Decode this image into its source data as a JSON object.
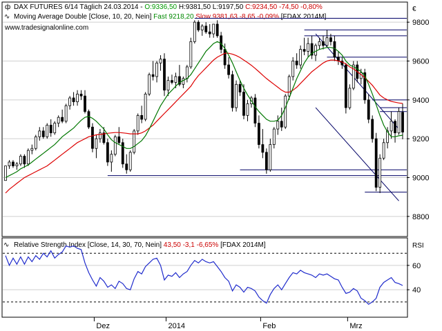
{
  "header": {
    "line1_icon": "candlestick-icon",
    "line1_parts": [
      {
        "text": "DAX FUTURES 6/14 Täglich  24.03.2014 - ",
        "color": "#000000"
      },
      {
        "text": "O:9336,50",
        "color": "#009900"
      },
      {
        "text": " H:9381,50 L:9197,50 ",
        "color": "#000000"
      },
      {
        "text": "C:9234,50 -74,50 -0,80%",
        "color": "#cc0000"
      }
    ],
    "line2_icon": "moving-average-icon",
    "line2_parts": [
      {
        "text": "Moving Average Double [Close, 10, 20, Nein] ",
        "color": "#000000"
      },
      {
        "text": "Fast 9218,20",
        "color": "#008800"
      },
      {
        "text": " Slow 9381,63 -8,65 -0,09%",
        "color": "#cc0000"
      },
      {
        "text": " [FDAX 2014M]",
        "color": "#000000"
      }
    ],
    "website": "www.tradesignalonline.com",
    "currency": "€"
  },
  "rsi_header": {
    "icon": "rsi-line-icon",
    "parts": [
      {
        "text": "Relative Strength Index [Close, 14, 30, 70, Nein] ",
        "color": "#000000"
      },
      {
        "text": "43,50 -3,1 -6,65%",
        "color": "#cc0000"
      },
      {
        "text": " [FDAX 2014M]",
        "color": "#000000"
      }
    ],
    "axis_title": "RSI"
  },
  "colors": {
    "fast_ma": "#007700",
    "slow_ma": "#dd0000",
    "candle": "#000000",
    "up_body": "#ffffff",
    "rsi_line": "#1f2bcc",
    "levels": "#000066"
  },
  "chart_data": [
    {
      "type": "candlestick",
      "ylim": [
        8700,
        9900
      ],
      "yticks": [
        8800,
        9000,
        9200,
        9400,
        9600,
        9800
      ],
      "xlabels": [
        {
          "label": "Dez",
          "index": 24
        },
        {
          "label": "2014",
          "index": 43
        },
        {
          "label": "Feb",
          "index": 68
        },
        {
          "label": "Mrz",
          "index": 91
        }
      ],
      "candles": [
        [
          8985,
          9060,
          8985,
          9060
        ],
        [
          9060,
          9090,
          9045,
          9080
        ],
        [
          9080,
          9090,
          9050,
          9060
        ],
        [
          9060,
          9080,
          9040,
          9070
        ],
        [
          9070,
          9120,
          9060,
          9110
        ],
        [
          9110,
          9120,
          9050,
          9070
        ],
        [
          9070,
          9150,
          9060,
          9140
        ],
        [
          9140,
          9170,
          9120,
          9150
        ],
        [
          9150,
          9220,
          9140,
          9210
        ],
        [
          9210,
          9260,
          9190,
          9240
        ],
        [
          9240,
          9260,
          9200,
          9210
        ],
        [
          9210,
          9280,
          9200,
          9270
        ],
        [
          9270,
          9300,
          9210,
          9230
        ],
        [
          9230,
          9290,
          9220,
          9280
        ],
        [
          9280,
          9320,
          9260,
          9310
        ],
        [
          9310,
          9350,
          9280,
          9290
        ],
        [
          9290,
          9380,
          9280,
          9370
        ],
        [
          9370,
          9420,
          9350,
          9410
        ],
        [
          9410,
          9440,
          9370,
          9390
        ],
        [
          9390,
          9450,
          9370,
          9430
        ],
        [
          9430,
          9450,
          9400,
          9420
        ],
        [
          9420,
          9450,
          9330,
          9340
        ],
        [
          9340,
          9350,
          9250,
          9260
        ],
        [
          9260,
          9280,
          9130,
          9150
        ],
        [
          9150,
          9220,
          9100,
          9200
        ],
        [
          9200,
          9250,
          9180,
          9230
        ],
        [
          9230,
          9260,
          9170,
          9180
        ],
        [
          9180,
          9200,
          9060,
          9080
        ],
        [
          9080,
          9140,
          9030,
          9120
        ],
        [
          9120,
          9220,
          9110,
          9210
        ],
        [
          9210,
          9260,
          9170,
          9180
        ],
        [
          9180,
          9200,
          9050,
          9070
        ],
        [
          9070,
          9120,
          9020,
          9040
        ],
        [
          9040,
          9140,
          9030,
          9130
        ],
        [
          9130,
          9250,
          9120,
          9240
        ],
        [
          9240,
          9330,
          9220,
          9320
        ],
        [
          9320,
          9370,
          9280,
          9300
        ],
        [
          9300,
          9440,
          9290,
          9430
        ],
        [
          9430,
          9540,
          9420,
          9530
        ],
        [
          9530,
          9600,
          9500,
          9520
        ],
        [
          9520,
          9600,
          9490,
          9590
        ],
        [
          9590,
          9630,
          9550,
          9610
        ],
        [
          9610,
          9640,
          9420,
          9450
        ],
        [
          9450,
          9520,
          9420,
          9500
        ],
        [
          9500,
          9530,
          9480,
          9490
        ],
        [
          9490,
          9540,
          9460,
          9520
        ],
        [
          9520,
          9580,
          9470,
          9480
        ],
        [
          9480,
          9520,
          9460,
          9510
        ],
        [
          9510,
          9580,
          9490,
          9570
        ],
        [
          9570,
          9720,
          9560,
          9700
        ],
        [
          9700,
          9810,
          9690,
          9800
        ],
        [
          9800,
          9810,
          9750,
          9760
        ],
        [
          9760,
          9790,
          9730,
          9780
        ],
        [
          9780,
          9800,
          9740,
          9750
        ],
        [
          9750,
          9790,
          9720,
          9740
        ],
        [
          9740,
          9790,
          9720,
          9790
        ],
        [
          9790,
          9810,
          9720,
          9730
        ],
        [
          9730,
          9750,
          9640,
          9660
        ],
        [
          9660,
          9690,
          9560,
          9580
        ],
        [
          9580,
          9620,
          9510,
          9530
        ],
        [
          9530,
          9550,
          9340,
          9360
        ],
        [
          9360,
          9500,
          9340,
          9480
        ],
        [
          9480,
          9500,
          9420,
          9440
        ],
        [
          9440,
          9480,
          9300,
          9320
        ],
        [
          9320,
          9400,
          9290,
          9380
        ],
        [
          9380,
          9420,
          9360,
          9410
        ],
        [
          9410,
          9430,
          9260,
          9280
        ],
        [
          9280,
          9320,
          9150,
          9170
        ],
        [
          9170,
          9250,
          9100,
          9130
        ],
        [
          9130,
          9150,
          9020,
          9040
        ],
        [
          9040,
          9200,
          9030,
          9170
        ],
        [
          9170,
          9260,
          9150,
          9250
        ],
        [
          9250,
          9320,
          9220,
          9290
        ],
        [
          9290,
          9360,
          9240,
          9260
        ],
        [
          9260,
          9430,
          9250,
          9420
        ],
        [
          9420,
          9530,
          9400,
          9520
        ],
        [
          9520,
          9620,
          9500,
          9600
        ],
        [
          9600,
          9640,
          9560,
          9580
        ],
        [
          9580,
          9680,
          9560,
          9660
        ],
        [
          9660,
          9720,
          9630,
          9650
        ],
        [
          9650,
          9720,
          9620,
          9690
        ],
        [
          9690,
          9730,
          9610,
          9630
        ],
        [
          9630,
          9690,
          9600,
          9680
        ],
        [
          9680,
          9720,
          9660,
          9700
        ],
        [
          9700,
          9730,
          9660,
          9680
        ],
        [
          9680,
          9760,
          9670,
          9720
        ],
        [
          9720,
          9740,
          9680,
          9700
        ],
        [
          9700,
          9730,
          9600,
          9620
        ],
        [
          9620,
          9650,
          9580,
          9600
        ],
        [
          9600,
          9620,
          9560,
          9580
        ],
        [
          9580,
          9590,
          9330,
          9360
        ],
        [
          9360,
          9480,
          9350,
          9460
        ],
        [
          9460,
          9600,
          9450,
          9580
        ],
        [
          9580,
          9600,
          9490,
          9510
        ],
        [
          9510,
          9560,
          9480,
          9540
        ],
        [
          9540,
          9560,
          9380,
          9400
        ],
        [
          9400,
          9430,
          9280,
          9300
        ],
        [
          9300,
          9320,
          9180,
          9200
        ],
        [
          9200,
          9230,
          8930,
          8950
        ],
        [
          8950,
          9120,
          8920,
          9100
        ],
        [
          9100,
          9200,
          9090,
          9180
        ],
        [
          9180,
          9260,
          9150,
          9240
        ],
        [
          9240,
          9340,
          9200,
          9290
        ],
        [
          9290,
          9300,
          9180,
          9230
        ],
        [
          9230,
          9360,
          9220,
          9340
        ],
        [
          9336,
          9381,
          9197,
          9234
        ]
      ],
      "fast_ma": [
        9000,
        9010,
        9020,
        9030,
        9045,
        9055,
        9065,
        9080,
        9095,
        9110,
        9125,
        9140,
        9155,
        9170,
        9190,
        9210,
        9225,
        9240,
        9255,
        9275,
        9295,
        9310,
        9315,
        9305,
        9290,
        9270,
        9250,
        9220,
        9195,
        9180,
        9170,
        9160,
        9150,
        9150,
        9160,
        9175,
        9190,
        9215,
        9250,
        9290,
        9330,
        9370,
        9400,
        9430,
        9450,
        9470,
        9490,
        9500,
        9510,
        9530,
        9560,
        9590,
        9620,
        9650,
        9670,
        9690,
        9700,
        9690,
        9665,
        9630,
        9590,
        9545,
        9500,
        9460,
        9425,
        9395,
        9365,
        9340,
        9320,
        9300,
        9290,
        9290,
        9295,
        9320,
        9360,
        9410,
        9460,
        9510,
        9550,
        9590,
        9620,
        9640,
        9650,
        9660,
        9665,
        9670,
        9670,
        9665,
        9650,
        9630,
        9600,
        9580,
        9570,
        9560,
        9545,
        9525,
        9480,
        9430,
        9375,
        9320,
        9270,
        9235,
        9210,
        9210,
        9215,
        9218
      ],
      "slow_ma": [
        8920,
        8940,
        8955,
        8970,
        8985,
        9000,
        9010,
        9020,
        9030,
        9040,
        9050,
        9060,
        9075,
        9090,
        9105,
        9120,
        9135,
        9150,
        9165,
        9180,
        9190,
        9200,
        9210,
        9215,
        9220,
        9222,
        9225,
        9228,
        9230,
        9232,
        9232,
        9230,
        9228,
        9225,
        9225,
        9225,
        9230,
        9240,
        9255,
        9270,
        9290,
        9310,
        9330,
        9350,
        9370,
        9390,
        9410,
        9430,
        9450,
        9470,
        9500,
        9525,
        9545,
        9565,
        9585,
        9605,
        9620,
        9630,
        9640,
        9640,
        9635,
        9628,
        9618,
        9605,
        9592,
        9578,
        9562,
        9545,
        9527,
        9510,
        9495,
        9480,
        9465,
        9450,
        9440,
        9440,
        9450,
        9465,
        9485,
        9505,
        9525,
        9545,
        9560,
        9575,
        9590,
        9600,
        9605,
        9605,
        9600,
        9595,
        9585,
        9570,
        9560,
        9545,
        9530,
        9515,
        9495,
        9475,
        9450,
        9425,
        9410,
        9400,
        9392,
        9388,
        9384,
        9381.63
      ],
      "levels": [
        {
          "y": 9820,
          "from": 50
        },
        {
          "y": 9760,
          "from": 79
        },
        {
          "y": 9730,
          "from": 79
        },
        {
          "y": 9620,
          "from": 85
        },
        {
          "y": 9400,
          "from": 97
        },
        {
          "y": 9360,
          "from": 99
        },
        {
          "y": 9340,
          "from": 99
        },
        {
          "y": 9040,
          "from": 62
        },
        {
          "y": 9010,
          "from": 27
        },
        {
          "y": 8925,
          "from": 95
        }
      ],
      "trendlines": [
        {
          "x1": 82,
          "y1": 9740,
          "x2": 104,
          "y2": 9250
        },
        {
          "x1": 82,
          "y1": 9360,
          "x2": 104,
          "y2": 8880
        }
      ]
    },
    {
      "type": "line",
      "title": "RSI",
      "ylim": [
        18,
        82
      ],
      "yticks": [
        40,
        60
      ],
      "reference_lines": [
        30,
        70
      ],
      "values": [
        68,
        60,
        66,
        61,
        67,
        61,
        67,
        63,
        68,
        65,
        70,
        67,
        72,
        66,
        69,
        71,
        76,
        75,
        76,
        74,
        73,
        62,
        54,
        48,
        43,
        50,
        47,
        42,
        44,
        41,
        47,
        45,
        41,
        40,
        49,
        55,
        53,
        59,
        62,
        65,
        66,
        60,
        48,
        52,
        51,
        54,
        50,
        53,
        55,
        60,
        64,
        62,
        65,
        63,
        62,
        63,
        59,
        55,
        50,
        47,
        39,
        44,
        42,
        38,
        42,
        41,
        39,
        34,
        31,
        29,
        36,
        41,
        44,
        40,
        45,
        50,
        54,
        53,
        56,
        54,
        53,
        52,
        50,
        53,
        52,
        53,
        51,
        49,
        48,
        42,
        37,
        38,
        41,
        39,
        33,
        31,
        28,
        30,
        33,
        42,
        46,
        48,
        50,
        46,
        45,
        43.5
      ]
    }
  ]
}
